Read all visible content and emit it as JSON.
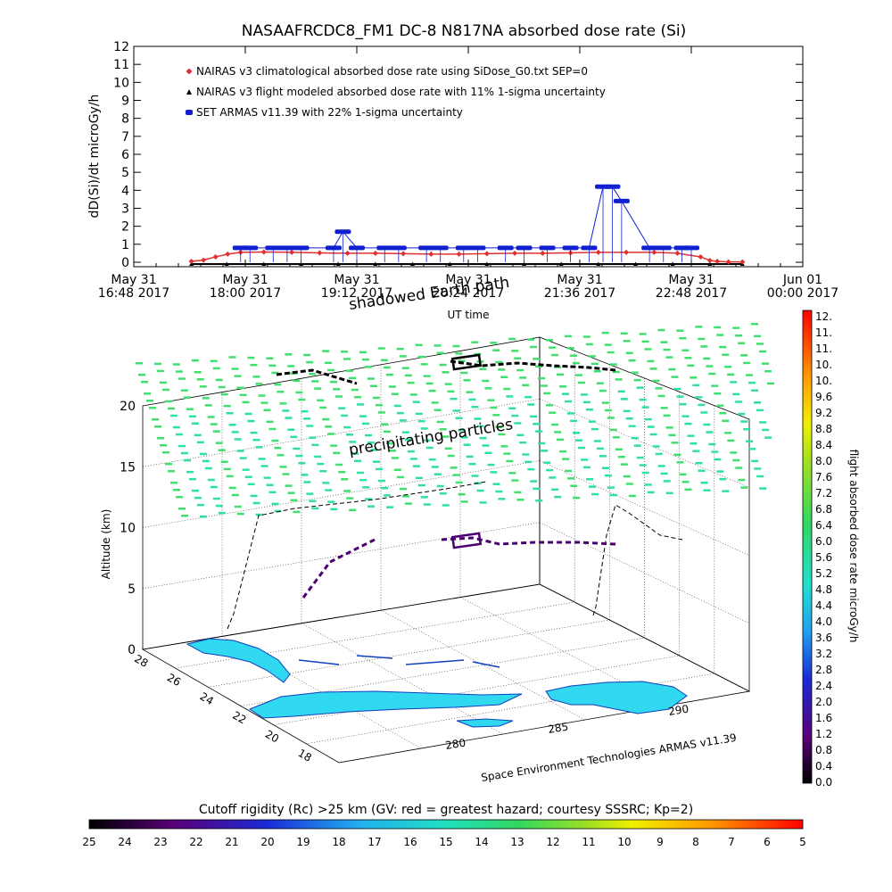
{
  "chart_data": [
    {
      "type": "line",
      "title": "NASAAFRCDC8_FM1 DC-8   N817NA absorbed dose rate (Si)",
      "xlabel": "UT time",
      "ylabel": "dD(Si)/dt microGy/h",
      "ylim": [
        0,
        12
      ],
      "yticks": [
        "0",
        "1",
        "2",
        "3",
        "4",
        "5",
        "6",
        "7",
        "8",
        "9",
        "10",
        "11",
        "12"
      ],
      "xlim_hours": [
        16.8,
        24.0
      ],
      "xticks": [
        {
          "t": 16.8,
          "line1": "May 31",
          "line2": "16:48 2017"
        },
        {
          "t": 18.0,
          "line1": "May 31",
          "line2": "18:00 2017"
        },
        {
          "t": 19.2,
          "line1": "May 31",
          "line2": "19:12 2017"
        },
        {
          "t": 20.4,
          "line1": "May 31",
          "line2": "20:24 2017"
        },
        {
          "t": 21.6,
          "line1": "May 31",
          "line2": "21:36 2017"
        },
        {
          "t": 22.8,
          "line1": "May 31",
          "line2": "22:48 2017"
        },
        {
          "t": 24.0,
          "line1": "Jun 01",
          "line2": "00:00 2017"
        }
      ],
      "legend_position": "top-left",
      "series": [
        {
          "name": "NAIRAS v3 climatological absorbed dose rate using SiDose_G0.txt SEP=0",
          "color": "#e03030",
          "marker": "diamond",
          "x": [
            17.42,
            17.55,
            17.68,
            17.81,
            17.95,
            18.2,
            18.5,
            18.8,
            19.1,
            19.4,
            19.7,
            20.0,
            20.3,
            20.6,
            20.9,
            21.2,
            21.5,
            21.8,
            22.1,
            22.4,
            22.65,
            22.9,
            23.0,
            23.08,
            23.2,
            23.35
          ],
          "values": [
            0.05,
            0.12,
            0.3,
            0.45,
            0.55,
            0.57,
            0.55,
            0.52,
            0.5,
            0.5,
            0.48,
            0.45,
            0.45,
            0.48,
            0.5,
            0.5,
            0.52,
            0.55,
            0.55,
            0.55,
            0.5,
            0.3,
            0.1,
            0.05,
            0.02,
            0.02
          ]
        },
        {
          "name": "NAIRAS v3 flight modeled absorbed dose rate with 11% 1-sigma uncertainty",
          "color": "#000000",
          "marker": "triangle",
          "x": [
            17.42,
            17.8,
            18.2,
            18.6,
            19.0,
            19.4,
            19.8,
            20.2,
            20.6,
            21.0,
            21.4,
            21.8,
            22.2,
            22.6,
            23.0,
            23.35
          ],
          "values": [
            0.0,
            0.0,
            0.0,
            0.0,
            0.0,
            0.0,
            0.0,
            0.0,
            0.0,
            0.0,
            0.0,
            0.0,
            0.0,
            0.0,
            0.0,
            0.0
          ]
        },
        {
          "name": "SET ARMAS v11.39 with 22% 1-sigma uncertainty",
          "color": "#1020d0",
          "marker": "circle",
          "x": [
            17.95,
            18.05,
            18.3,
            18.45,
            18.6,
            18.95,
            19.05,
            19.2,
            19.5,
            19.65,
            19.95,
            20.1,
            20.35,
            20.5,
            20.8,
            21.0,
            21.25,
            21.5,
            21.7,
            21.85,
            21.95,
            22.05,
            22.35,
            22.5,
            22.7,
            22.8
          ],
          "values": [
            0.8,
            0.8,
            0.8,
            0.8,
            0.8,
            0.8,
            1.7,
            0.8,
            0.8,
            0.8,
            0.8,
            0.8,
            0.8,
            0.8,
            0.8,
            0.8,
            0.8,
            0.8,
            0.8,
            4.2,
            4.2,
            3.4,
            0.8,
            0.8,
            0.8,
            0.8
          ]
        }
      ]
    },
    {
      "type": "scatter",
      "title": "",
      "zlabel": "Altitude (km)",
      "zlim": [
        0,
        20
      ],
      "zticks": [
        "0",
        "5",
        "10",
        "15",
        "20"
      ],
      "lat_ticks": [
        "28",
        "26",
        "24",
        "22",
        "20",
        "18"
      ],
      "lon_ticks": [
        "280",
        "285",
        "290"
      ],
      "annotations": [
        "shadowed Earth path",
        "precipitating particles",
        "Space Environment Technologies ARMAS v11.39"
      ],
      "colorbar": {
        "label": "flight absorbed dose rate microGy/h",
        "ticks": [
          "12.",
          "11.",
          "11.",
          "10.",
          "10.",
          "9.6",
          "9.2",
          "8.8",
          "8.4",
          "8.0",
          "7.6",
          "7.2",
          "6.8",
          "6.4",
          "6.0",
          "5.6",
          "5.2",
          "4.8",
          "4.4",
          "4.0",
          "3.6",
          "3.2",
          "2.8",
          "2.4",
          "2.0",
          "1.6",
          "1.2",
          "0.8",
          "0.4",
          "0.0"
        ]
      },
      "flight_track": [
        {
          "t": 17.42,
          "alt": 0.5,
          "dose": 0.1
        },
        {
          "t": 18.2,
          "alt": 10.8,
          "dose": 0.5
        },
        {
          "t": 19.2,
          "alt": 11.0,
          "dose": 0.8
        },
        {
          "t": 20.6,
          "alt": 11.3,
          "dose": 0.8
        },
        {
          "t": 21.6,
          "alt": 11.0,
          "dose": 0.8
        },
        {
          "t": 22.8,
          "alt": 10.5,
          "dose": 0.8
        },
        {
          "t": 23.3,
          "alt": 0.5,
          "dose": 0.1
        }
      ]
    },
    {
      "type": "heatmap",
      "title": "Cutoff rigidity (Rc) >25 km (GV: red = greatest hazard; courtesy SSSRC; Kp=2)",
      "ticks": [
        "25",
        "24",
        "23",
        "22",
        "21",
        "20",
        "19",
        "18",
        "17",
        "16",
        "15",
        "14",
        "13",
        "12",
        "11",
        "10",
        "9",
        "8",
        "7",
        "6",
        "5"
      ]
    }
  ],
  "colors": {
    "nairas_climatological": "#e03030",
    "nairas_flight": "#000000",
    "armas": "#1020d0",
    "particles_green": "#40e070",
    "particles_cyan": "#30e0a0",
    "land": "#30d8f0"
  }
}
